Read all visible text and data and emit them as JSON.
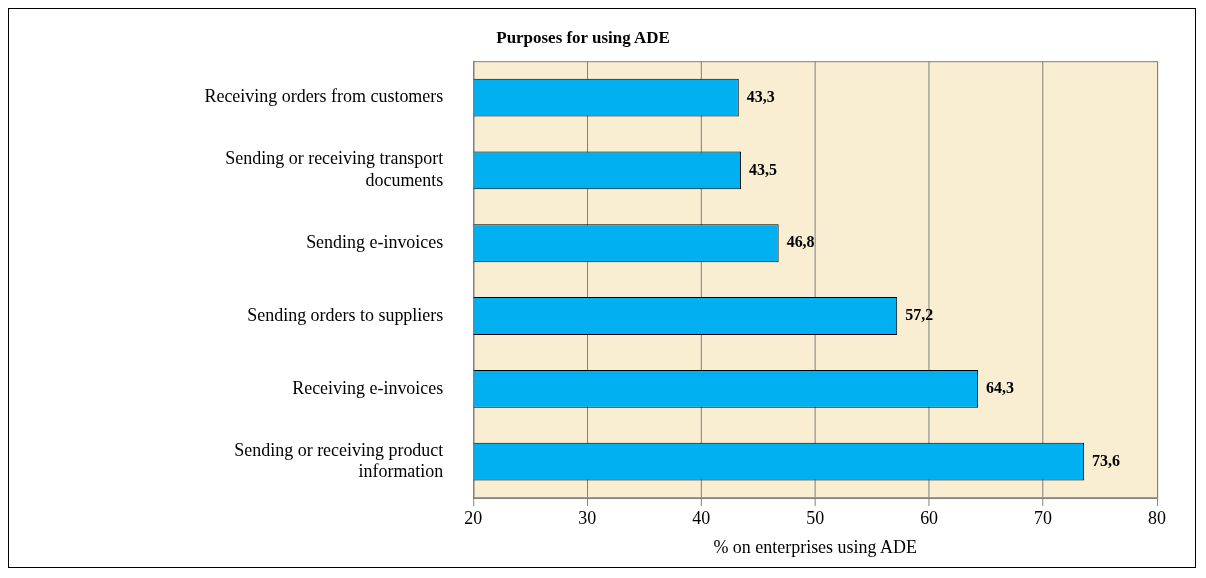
{
  "chart_data": {
    "type": "bar",
    "orientation": "horizontal",
    "title": "Purposes for using ADE",
    "xlabel": "% on enterprises using ADE",
    "categories": [
      "Receiving orders from customers",
      "Sending or receiving transport documents",
      "Sending e-invoices",
      "Sending orders to suppliers",
      "Receiving e-invoices",
      "Sending or receiving product information"
    ],
    "values": [
      43.3,
      43.5,
      46.8,
      57.2,
      64.3,
      73.6
    ],
    "value_labels": [
      "43,3",
      "43,5",
      "46,8",
      "57,2",
      "64,3",
      "73,6"
    ],
    "color": "#00b0f0",
    "xlim": [
      20,
      80
    ],
    "xticks": [
      20,
      30,
      40,
      50,
      60,
      70,
      80
    ],
    "grid": "x",
    "legend": false
  }
}
